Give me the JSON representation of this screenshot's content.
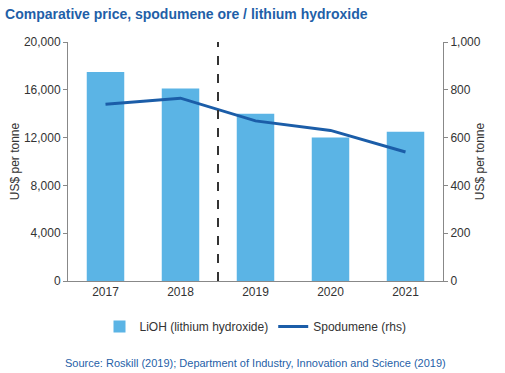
{
  "chart_data": {
    "type": "bar",
    "title": "Comparative price, spodumene ore / lithium hydroxide",
    "categories": [
      "2017",
      "2018",
      "2019",
      "2020",
      "2021"
    ],
    "series": [
      {
        "name": "LiOH (lithium hydroxide)",
        "type": "bar",
        "color": "#5bb4e5",
        "values": [
          17500,
          16100,
          14000,
          12000,
          12500
        ]
      },
      {
        "name": "Spodumene (rhs)",
        "type": "line",
        "color": "#1b5da8",
        "axis": "y2",
        "values": [
          740,
          765,
          670,
          630,
          540
        ]
      }
    ],
    "y_label": "US$ per tonne",
    "y2_label": "US$ per tonne",
    "ylim": [
      0,
      20000
    ],
    "yticks": [
      0,
      {
        "value": 4000,
        "label": "4,000"
      },
      {
        "value": 8000,
        "label": "8,000"
      },
      {
        "value": 12000,
        "label": "12,000"
      },
      {
        "value": 16000,
        "label": "16,000"
      },
      {
        "value": 20000,
        "label": "20,000"
      }
    ],
    "y2lim": [
      0,
      1000
    ],
    "y2ticks": [
      0,
      200,
      400,
      600,
      800,
      {
        "value": 1000,
        "label": "1,000"
      }
    ],
    "grid": false,
    "legend": "bottom",
    "source": "Source: Roskill (2019); Department of Industry, Innovation and Science (2019)"
  }
}
